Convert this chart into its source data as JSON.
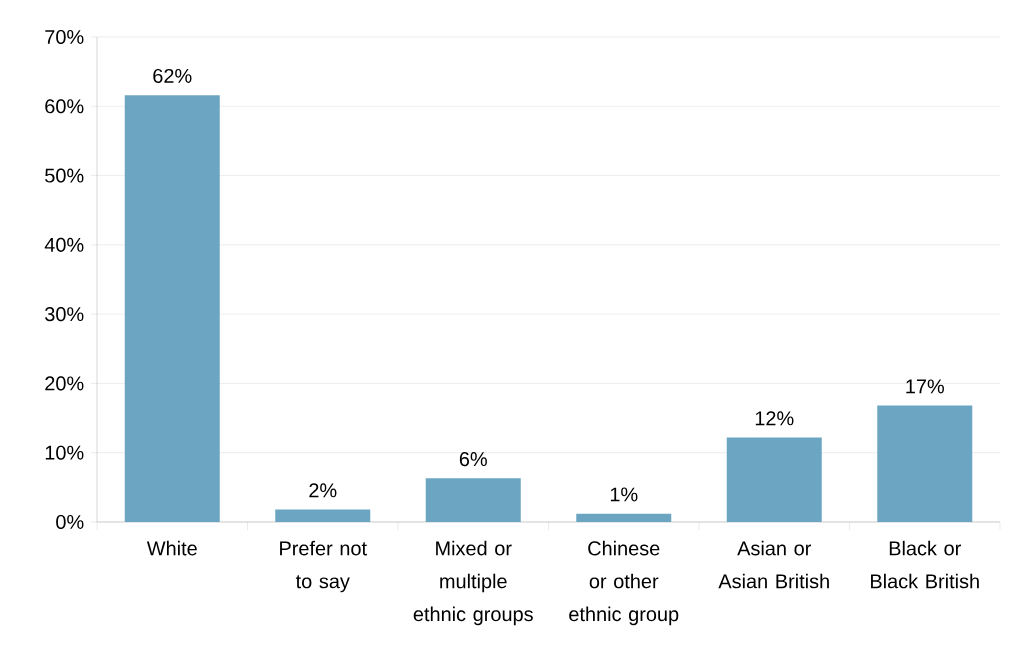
{
  "chart_data": {
    "type": "bar",
    "categories": [
      "White",
      "Prefer not to say",
      "Mixed or multiple ethnic groups",
      "Chinese or other ethnic group",
      "Asian or Asian British",
      "Black or Black British"
    ],
    "values": [
      61.6,
      1.8,
      6.3,
      1.2,
      12.2,
      16.8
    ],
    "value_labels": [
      "62%",
      "2%",
      "6%",
      "1%",
      "12%",
      "17%"
    ],
    "color": "#6ba5c1",
    "ylim": [
      0,
      70
    ],
    "yticks": [
      {
        "value": 0,
        "label": "0%"
      },
      {
        "value": 10,
        "label": "10%"
      },
      {
        "value": 20,
        "label": "20%"
      },
      {
        "value": 30,
        "label": "30%"
      },
      {
        "value": 40,
        "label": "40%"
      },
      {
        "value": 50,
        "label": "50%"
      },
      {
        "value": 60,
        "label": "60%"
      },
      {
        "value": 70,
        "label": "70%"
      }
    ],
    "grid": "y"
  }
}
